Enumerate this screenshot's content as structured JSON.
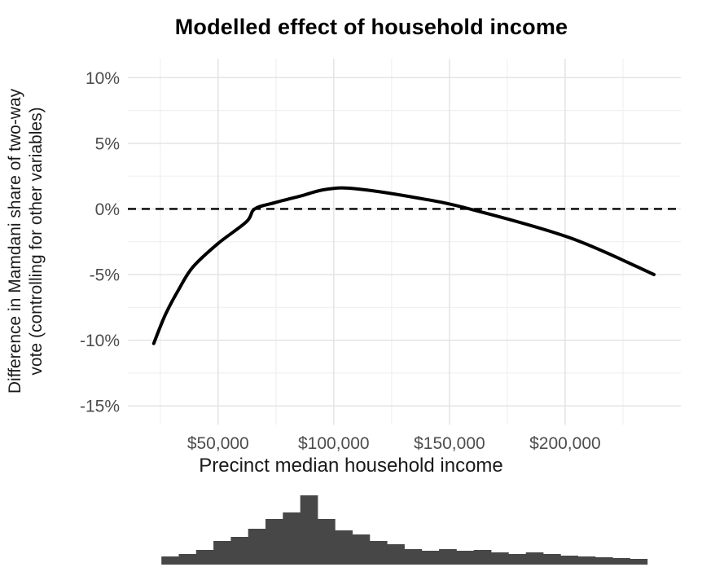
{
  "title": "Modelled effect of household income",
  "axes": {
    "y_label_line1": "Difference in Mamdani share of two-way",
    "y_label_line2": "vote (controlling for other variables)",
    "x_label": "Precinct median household income"
  },
  "colors": {
    "background": "#ffffff",
    "curve": "#000000",
    "zero_line": "#000000",
    "histogram_bar": "#474747",
    "grid_major": "#e2e2e2",
    "grid_minor": "#f0f0f0",
    "tick_text": "#4d4d4d",
    "title_text": "#000000",
    "axis_title_text": "#1a1a1a"
  },
  "chart_data": [
    {
      "type": "line",
      "title": "Modelled effect of household income",
      "xlabel": "Precinct median household income",
      "ylabel": "Difference in Mamdani share of two-way vote (controlling for other variables)",
      "xlim": [
        11000,
        250000
      ],
      "ylim": [
        -16.45,
        11.45
      ],
      "grid": "major+minor, no panel border (ggplot theme_minimal style)",
      "legend": "none",
      "x_ticks": [
        {
          "value": 50000,
          "label": "$50,000"
        },
        {
          "value": 100000,
          "label": "$100,000"
        },
        {
          "value": 150000,
          "label": "$150,000"
        },
        {
          "value": 200000,
          "label": "$200,000"
        }
      ],
      "x_minor": [
        25000,
        75000,
        125000,
        175000,
        225000
      ],
      "y_ticks": [
        {
          "value": 10,
          "label": "10%"
        },
        {
          "value": 5,
          "label": "5%"
        },
        {
          "value": 0,
          "label": "0%"
        },
        {
          "value": -5,
          "label": "-5%"
        },
        {
          "value": -10,
          "label": "-10%"
        },
        {
          "value": -15,
          "label": "-15%"
        }
      ],
      "y_minor": [
        7.5,
        2.5,
        -2.5,
        -7.5,
        -12.5
      ],
      "reference_line": {
        "y": 0,
        "style": "dashed",
        "color": "#000000"
      },
      "series": [
        {
          "name": "modelled-effect-curve",
          "points_income_vs_effect_pct": [
            [
              22200,
              -10.25
            ],
            [
              27100,
              -8.1
            ],
            [
              33100,
              -6.1
            ],
            [
              39100,
              -4.43
            ],
            [
              50000,
              -2.63
            ],
            [
              62300,
              -0.97
            ],
            [
              65800,
              0.0
            ],
            [
              74600,
              0.48
            ],
            [
              85900,
              1.0
            ],
            [
              96500,
              1.49
            ],
            [
              108800,
              1.55
            ],
            [
              135200,
              0.87
            ],
            [
              158800,
              0.0
            ],
            [
              202100,
              -2.2
            ],
            [
              238400,
              -5.0
            ]
          ]
        }
      ]
    },
    {
      "type": "histogram",
      "description": "Distribution of precinct median household income (rug histogram under main panel)",
      "bin_start": 25500,
      "bin_width": 7500,
      "relative_heights": [
        10,
        13,
        18,
        29,
        34,
        44,
        56,
        64,
        85,
        56,
        42,
        37,
        29,
        25,
        19,
        17,
        19,
        17,
        18,
        15,
        13,
        15,
        13,
        11,
        10,
        9,
        8,
        7
      ]
    }
  ]
}
